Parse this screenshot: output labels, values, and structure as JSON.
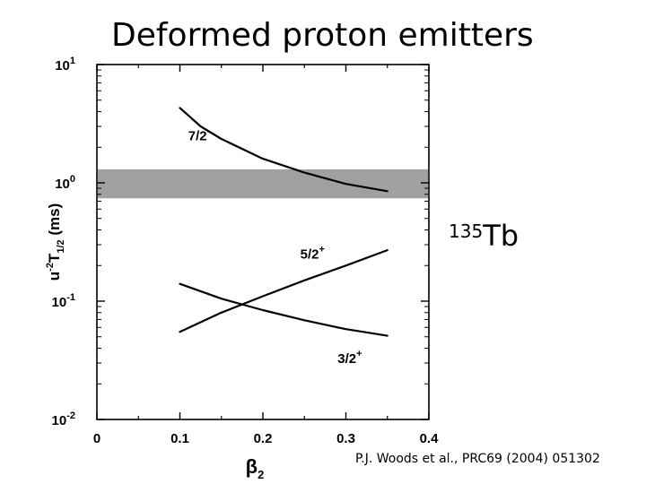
{
  "title": "Deformed proton emitters",
  "isotope": {
    "mass": "135",
    "symbol": "Tb"
  },
  "citation": "P.J. Woods et al., PRC69 (2004) 051302",
  "colors": {
    "band": "#a0a0a0",
    "line": "#000000"
  },
  "chart_data": {
    "type": "line",
    "xlabel": "β2",
    "ylabel": "u-2T1/2 (ms)",
    "xlim": [
      0,
      0.4
    ],
    "ylim": [
      0.01,
      10
    ],
    "yscale": "log",
    "grid": false,
    "x_ticks": [
      "0",
      "0.1",
      "0.2",
      "0.3",
      "0.4"
    ],
    "y_ticks": [
      {
        "value": 10,
        "base": "10",
        "exp": "1"
      },
      {
        "value": 1,
        "base": "10",
        "exp": "0"
      },
      {
        "value": 0.1,
        "base": "10",
        "exp": "-1"
      },
      {
        "value": 0.01,
        "base": "10",
        "exp": "-2"
      }
    ],
    "band": {
      "y_low": 0.74,
      "y_high": 1.3
    },
    "series": [
      {
        "name": "7/2-",
        "label_base": "7/2",
        "label_sup": "-",
        "label_at": [
          0.11,
          2.3
        ],
        "x": [
          0.1,
          0.125,
          0.15,
          0.2,
          0.25,
          0.3,
          0.35
        ],
        "y": [
          4.3,
          3.0,
          2.35,
          1.6,
          1.22,
          0.98,
          0.85
        ]
      },
      {
        "name": "5/2+",
        "label_base": "5/2",
        "label_sup": "+",
        "label_at": [
          0.245,
          0.23
        ],
        "x": [
          0.1,
          0.15,
          0.2,
          0.25,
          0.3,
          0.35
        ],
        "y": [
          0.055,
          0.08,
          0.11,
          0.15,
          0.2,
          0.27
        ]
      },
      {
        "name": "3/2+",
        "label_base": "3/2",
        "label_sup": "+",
        "label_at": [
          0.29,
          0.03
        ],
        "x": [
          0.1,
          0.15,
          0.2,
          0.25,
          0.3,
          0.35
        ],
        "y": [
          0.14,
          0.105,
          0.084,
          0.069,
          0.058,
          0.051
        ]
      }
    ]
  }
}
